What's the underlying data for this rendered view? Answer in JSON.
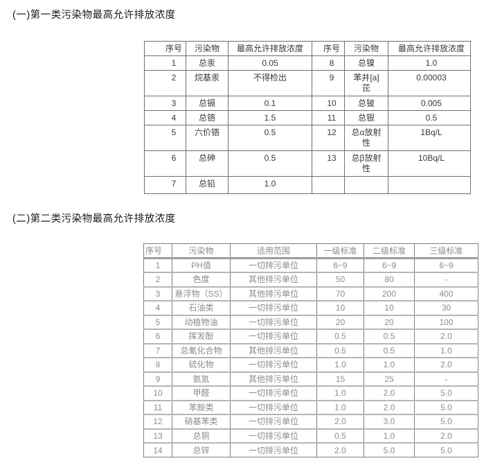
{
  "page": {
    "heading1": "(一)第一类污染物最高允许排放浓度",
    "heading2": "(二)第二类污染物最高允许排放浓度"
  },
  "colors": {
    "table1_text": "#383838",
    "table2_text": "#8c8c8c",
    "grid_dark": "#6f6f6f",
    "grid_light": "#b5b5b5",
    "header_rule": "#9c9c9c"
  },
  "table1": {
    "headers": [
      "序号",
      "污染物",
      "最高允许排放浓度",
      "序号",
      "污染物",
      "最高允许排放浓度"
    ],
    "rows": [
      [
        "1",
        "总汞",
        "0.05",
        "8",
        "总镍",
        "1.0"
      ],
      [
        "2",
        "烷基汞",
        "不得检出",
        "9",
        "苯并[a]\n芘",
        "0.00003"
      ],
      [
        "3",
        "总镉",
        "0.1",
        "10",
        "总铍",
        "0.005"
      ],
      [
        "4",
        "总铬",
        "1.5",
        "11",
        "总银",
        "0.5"
      ],
      [
        "5",
        "六价铬",
        "0.5",
        "12",
        "总α放射\n性",
        "1Bq/L"
      ],
      [
        "6",
        "总砷",
        "0.5",
        "13",
        "总β放射\n性",
        "10Bq/L"
      ],
      [
        "7",
        "总铅",
        "1.0",
        "",
        "",
        ""
      ]
    ]
  },
  "table2": {
    "headers": [
      "序号",
      "污染物",
      "适用范围",
      "一级标准",
      "二级标准",
      "三级标准"
    ],
    "rows": [
      [
        "1",
        "PH值",
        "一切排污单位",
        "6~9",
        "6~9",
        "6~9"
      ],
      [
        "2",
        "色度",
        "其他排污单位",
        "50",
        "80",
        "-"
      ],
      [
        "3",
        "悬浮物（SS）",
        "其他排污单位",
        "70",
        "200",
        "400"
      ],
      [
        "4",
        "石油类",
        "一切排污单位",
        "10",
        "10",
        "30"
      ],
      [
        "5",
        "动植物油",
        "一切排污单位",
        "20",
        "20",
        "100"
      ],
      [
        "6",
        "挥发酚",
        "一切排污单位",
        "0.5",
        "0.5",
        "2.0"
      ],
      [
        "7",
        "总氰化合物",
        "其他排污单位",
        "0.5",
        "0.5",
        "1.0"
      ],
      [
        "8",
        "硫化物",
        "一切排污单位",
        "1.0",
        "1.0",
        "2.0"
      ],
      [
        "9",
        "氨氮",
        "其他排污单位",
        "15",
        "25",
        "-"
      ],
      [
        "10",
        "甲醛",
        "一切排污单位",
        "1.0",
        "2.0",
        "5.0"
      ],
      [
        "11",
        "苯胺类",
        "一切排污单位",
        "1.0",
        "2.0",
        "5.0"
      ],
      [
        "12",
        "硝基苯类",
        "一切排污单位",
        "2.0",
        "3.0",
        "5.0"
      ],
      [
        "13",
        "总铜",
        "一切排污单位",
        "0.5",
        "1.0",
        "2.0"
      ],
      [
        "14",
        "总锌",
        "一切排污单位",
        "2.0",
        "5.0",
        "5.0"
      ]
    ]
  }
}
